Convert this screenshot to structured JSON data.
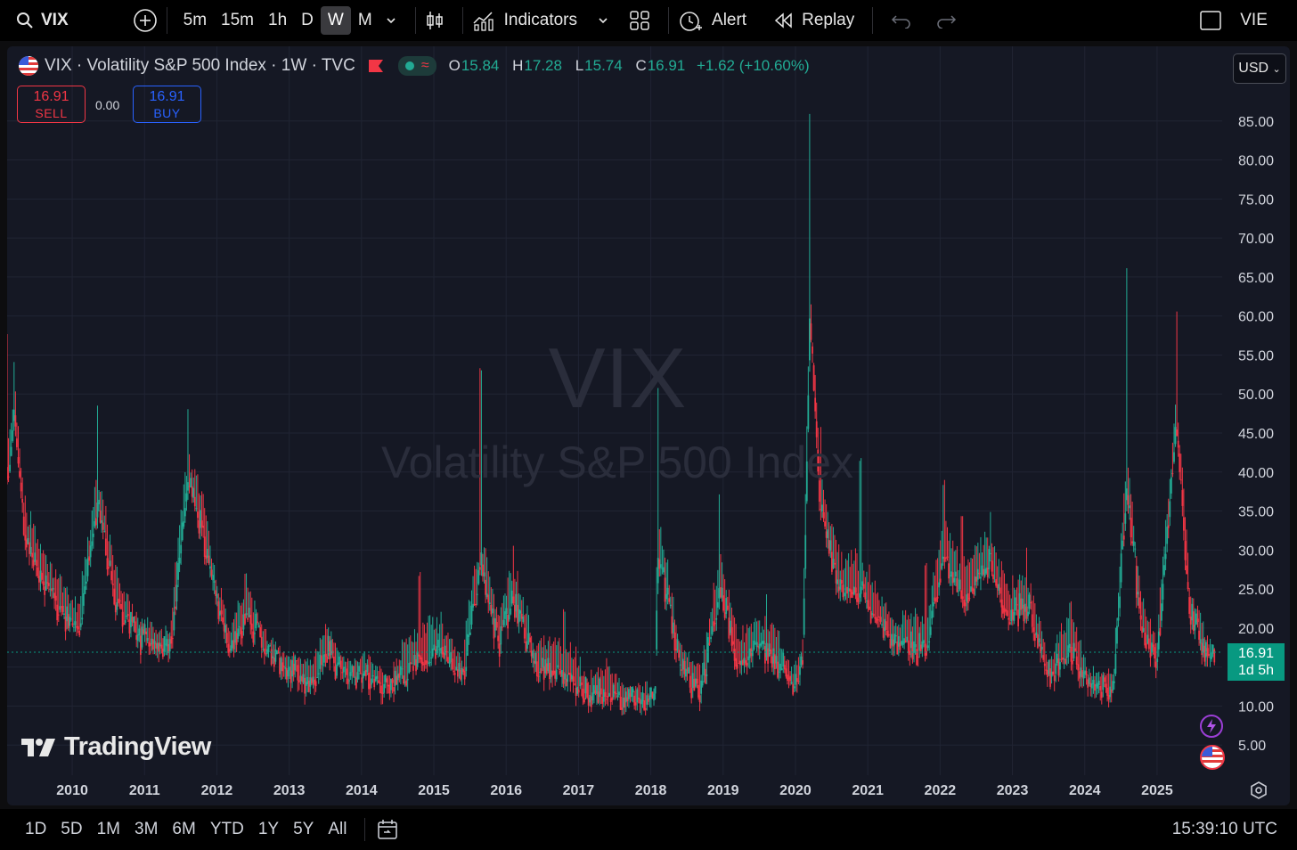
{
  "toolbar": {
    "symbol": "VIX",
    "timeframes": [
      "5m",
      "15m",
      "1h",
      "D",
      "W",
      "M"
    ],
    "active_timeframe": "W",
    "indicators_label": "Indicators",
    "alert_label": "Alert",
    "replay_label": "Replay",
    "right_label": "VIE"
  },
  "legend": {
    "title": "VIX · Volatility S&P 500 Index · 1W · TVC",
    "open_key": "O",
    "open": "15.84",
    "high_key": "H",
    "high": "17.28",
    "low_key": "L",
    "low": "15.74",
    "close_key": "C",
    "close": "16.91",
    "change": "+1.62 (+10.60%)"
  },
  "trade": {
    "sell_price": "16.91",
    "sell_label": "SELL",
    "spread": "0.00",
    "buy_price": "16.91",
    "buy_label": "BUY"
  },
  "currency": "USD",
  "watermark": {
    "symbol": "VIX",
    "name": "Volatility S&P 500 Index"
  },
  "logo_text": "TradingView",
  "price_tag": {
    "price": "16.91",
    "countdown": "1d 5h"
  },
  "bottom": {
    "ranges": [
      "1D",
      "5D",
      "1M",
      "3M",
      "6M",
      "YTD",
      "1Y",
      "5Y",
      "All"
    ],
    "time": "15:39:10 UTC"
  },
  "colors": {
    "up": "#22ab94",
    "down": "#f23645",
    "tag": "#089981",
    "background": "#151824"
  },
  "chart_data": {
    "type": "candlestick",
    "interval": "1W",
    "y_ticks": [
      "5.00",
      "10.00",
      "15.00",
      "20.00",
      "25.00",
      "30.00",
      "35.00",
      "40.00",
      "45.00",
      "50.00",
      "55.00",
      "60.00",
      "65.00",
      "70.00",
      "75.00",
      "80.00",
      "85.00"
    ],
    "x_ticks": [
      "2010",
      "2011",
      "2012",
      "2013",
      "2014",
      "2015",
      "2016",
      "2017",
      "2018",
      "2019",
      "2020",
      "2021",
      "2022",
      "2023",
      "2024",
      "2025"
    ],
    "ylim": [
      0,
      90
    ],
    "xlim": [
      2009.1,
      2025.9
    ],
    "current_price": 16.91,
    "anchors": [
      [
        2009.1,
        38,
        57
      ],
      [
        2009.2,
        47,
        53
      ],
      [
        2009.35,
        31,
        36
      ],
      [
        2009.6,
        26,
        29
      ],
      [
        2009.9,
        22,
        25
      ],
      [
        2010.1,
        20,
        22
      ],
      [
        2010.35,
        36,
        48
      ],
      [
        2010.6,
        24,
        27
      ],
      [
        2010.9,
        19,
        21
      ],
      [
        2011.1,
        18,
        20
      ],
      [
        2011.35,
        17,
        19
      ],
      [
        2011.6,
        38,
        48
      ],
      [
        2011.8,
        33,
        37
      ],
      [
        2011.95,
        25,
        28
      ],
      [
        2012.2,
        17,
        19
      ],
      [
        2012.4,
        22,
        26
      ],
      [
        2012.7,
        17,
        18
      ],
      [
        2013.0,
        15,
        16
      ],
      [
        2013.3,
        13,
        15
      ],
      [
        2013.5,
        17,
        20
      ],
      [
        2013.8,
        14,
        15
      ],
      [
        2014.1,
        14,
        16
      ],
      [
        2014.4,
        12,
        13
      ],
      [
        2014.8,
        16,
        26
      ],
      [
        2015.1,
        17,
        21
      ],
      [
        2015.4,
        14,
        15
      ],
      [
        2015.65,
        28,
        53
      ],
      [
        2015.9,
        18,
        21
      ],
      [
        2016.1,
        24,
        30
      ],
      [
        2016.4,
        15,
        17
      ],
      [
        2016.8,
        14,
        22
      ],
      [
        2017.1,
        12,
        13
      ],
      [
        2017.4,
        11,
        15
      ],
      [
        2017.8,
        10,
        12
      ],
      [
        2018.05,
        11,
        12
      ],
      [
        2018.1,
        30,
        50
      ],
      [
        2018.4,
        15,
        18
      ],
      [
        2018.7,
        12,
        14
      ],
      [
        2018.95,
        25,
        36
      ],
      [
        2019.2,
        16,
        18
      ],
      [
        2019.6,
        17,
        24
      ],
      [
        2019.95,
        13,
        14
      ],
      [
        2020.1,
        15,
        18
      ],
      [
        2020.2,
        60,
        85
      ],
      [
        2020.35,
        35,
        45
      ],
      [
        2020.6,
        25,
        30
      ],
      [
        2020.9,
        25,
        41
      ],
      [
        2021.1,
        22,
        25
      ],
      [
        2021.4,
        18,
        20
      ],
      [
        2021.8,
        17,
        28
      ],
      [
        2022.05,
        30,
        38
      ],
      [
        2022.3,
        24,
        34
      ],
      [
        2022.7,
        28,
        34
      ],
      [
        2022.95,
        21,
        24
      ],
      [
        2023.2,
        23,
        30
      ],
      [
        2023.5,
        14,
        15
      ],
      [
        2023.8,
        17,
        23
      ],
      [
        2024.05,
        13,
        14
      ],
      [
        2024.4,
        12,
        14
      ],
      [
        2024.58,
        38,
        65
      ],
      [
        2024.8,
        19,
        23
      ],
      [
        2025.0,
        16,
        18
      ],
      [
        2025.27,
        46,
        60
      ],
      [
        2025.45,
        22,
        25
      ],
      [
        2025.7,
        16,
        18
      ],
      [
        2025.85,
        16.91,
        17.28
      ]
    ]
  }
}
